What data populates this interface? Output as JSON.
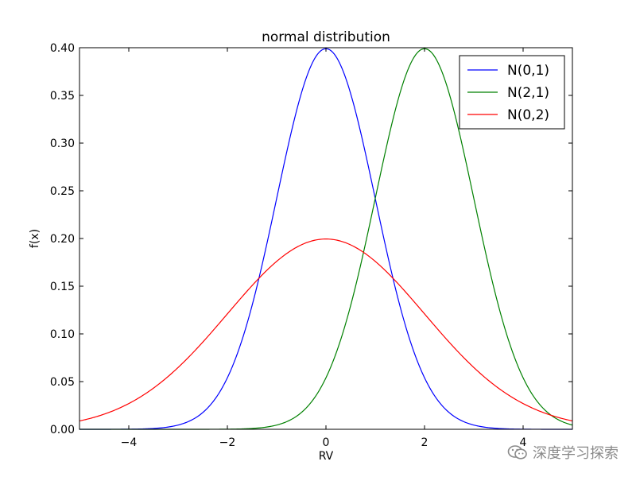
{
  "chart_data": {
    "type": "line",
    "title": "normal distribution",
    "xlabel": "RV",
    "ylabel": "f(x)",
    "xlim": [
      -5,
      5
    ],
    "ylim": [
      0,
      0.4
    ],
    "x_ticks": [
      -4,
      -2,
      0,
      2,
      4
    ],
    "x_tick_labels": [
      "−4",
      "−2",
      "0",
      "2",
      "4"
    ],
    "y_ticks": [
      0.0,
      0.05,
      0.1,
      0.15,
      0.2,
      0.25,
      0.3,
      0.35,
      0.4
    ],
    "y_tick_labels": [
      "0.00",
      "0.05",
      "0.10",
      "0.15",
      "0.20",
      "0.25",
      "0.30",
      "0.35",
      "0.40"
    ],
    "grid": false,
    "legend_position": "top-right",
    "series": [
      {
        "name": "N(0,1)",
        "mu": 0,
        "sigma": 1,
        "color": "#0000ff",
        "x": [
          -5,
          -4,
          -3,
          -2,
          -1.5,
          -1,
          -0.5,
          0,
          0.5,
          1,
          1.5,
          2,
          3,
          4,
          5
        ],
        "y": [
          1.5e-06,
          0.000134,
          0.00443,
          0.054,
          0.1295,
          0.242,
          0.352,
          0.399,
          0.352,
          0.242,
          0.1295,
          0.054,
          0.00443,
          0.000134,
          1.5e-06
        ]
      },
      {
        "name": "N(2,1)",
        "mu": 2,
        "sigma": 1,
        "color": "#008000",
        "x": [
          -5,
          -4,
          -3,
          -2,
          -1,
          0,
          0.5,
          1,
          1.5,
          2,
          2.5,
          3,
          3.5,
          4,
          5
        ],
        "y": [
          0.0,
          0.0,
          1.5e-06,
          0.000134,
          0.00443,
          0.054,
          0.1295,
          0.242,
          0.352,
          0.399,
          0.352,
          0.242,
          0.1295,
          0.054,
          0.00443
        ]
      },
      {
        "name": "N(0,2)",
        "mu": 0,
        "sigma": 2,
        "color": "#ff0000",
        "x": [
          -5,
          -4,
          -3,
          -2,
          -1,
          0,
          1,
          2,
          3,
          4,
          5
        ],
        "y": [
          0.0088,
          0.027,
          0.0648,
          0.121,
          0.176,
          0.1995,
          0.176,
          0.121,
          0.0648,
          0.027,
          0.0088
        ]
      }
    ]
  },
  "watermark": {
    "text": "深度学习探索",
    "icon": "wechat-icon"
  }
}
